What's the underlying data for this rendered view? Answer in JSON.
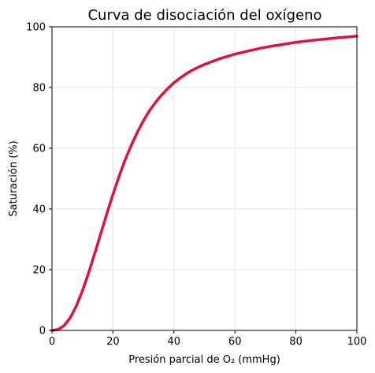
{
  "chart_data": {
    "type": "line",
    "title": "Curva de disociación del oxígeno",
    "xlabel": "Presión parcial de O₂ (mmHg)",
    "ylabel": "Saturación (%)",
    "xlim": [
      0,
      100
    ],
    "ylim": [
      0,
      100
    ],
    "x_ticks": [
      "0",
      "20",
      "40",
      "60",
      "80",
      "100"
    ],
    "y_ticks": [
      "0",
      "20",
      "40",
      "60",
      "80",
      "100"
    ],
    "grid": true,
    "series": [
      {
        "color": "#dc143c",
        "x": [
          0,
          2,
          4,
          6,
          8,
          10,
          12,
          14,
          16,
          18,
          20,
          22,
          24,
          26,
          28,
          30,
          32,
          34,
          36,
          38,
          40,
          42,
          44,
          46,
          48,
          50,
          55,
          60,
          65,
          70,
          75,
          80,
          85,
          90,
          95,
          100
        ],
        "y": [
          0,
          0.3,
          1.6,
          4.2,
          8.1,
          13.1,
          18.9,
          25.3,
          31.9,
          38.5,
          44.8,
          50.8,
          56.2,
          61.0,
          65.3,
          69.1,
          72.4,
          75.2,
          77.6,
          79.7,
          81.6,
          83.1,
          84.5,
          85.7,
          86.7,
          87.6,
          89.5,
          91.0,
          92.2,
          93.3,
          94.1,
          94.9,
          95.5,
          96.0,
          96.5,
          96.9
        ]
      }
    ]
  }
}
